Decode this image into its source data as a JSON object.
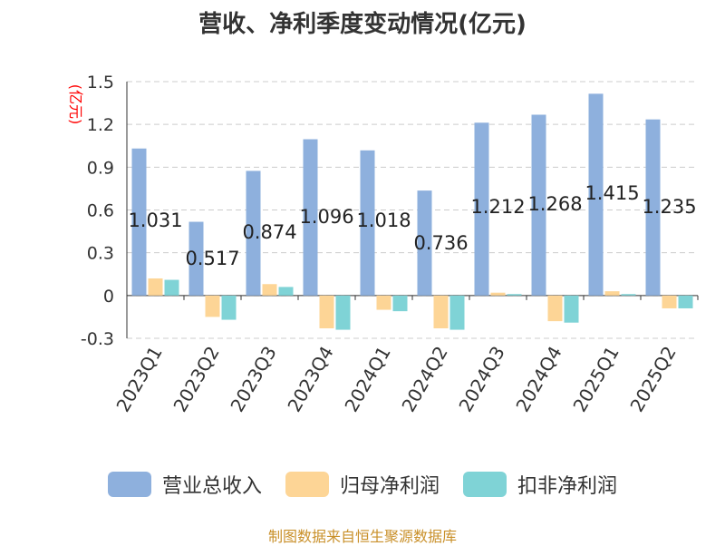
{
  "title": "营收、净利季度变动情况(亿元)",
  "source": "制图数据来自恒生聚源数据库",
  "colors": {
    "revenue": "#8eb0dd",
    "net_profit": "#fdd596",
    "deducted_profit": "#7fd3d6",
    "ylabel": "#ff0000",
    "grid": "#cccccc",
    "axis": "#333333"
  },
  "chart_data": {
    "type": "bar",
    "title": "营收、净利季度变动情况(亿元)",
    "ylabel": "(亿元)",
    "xlabel": "",
    "ylim": [
      -0.3,
      1.5
    ],
    "yticks": [
      -0.3,
      0,
      0.3,
      0.6,
      0.9,
      1.2,
      1.5
    ],
    "ytick_labels": [
      "-0.3",
      "0",
      "0.3",
      "0.6",
      "0.9",
      "1.2",
      "1.5"
    ],
    "grid": true,
    "legend_position": "bottom",
    "categories": [
      "2023Q1",
      "2023Q2",
      "2023Q3",
      "2023Q4",
      "2024Q1",
      "2024Q2",
      "2024Q3",
      "2024Q4",
      "2025Q1",
      "2025Q2"
    ],
    "series": [
      {
        "name": "营业总收入",
        "values": [
          1.031,
          0.517,
          0.874,
          1.096,
          1.018,
          0.736,
          1.212,
          1.268,
          1.415,
          1.235
        ],
        "data_labels": [
          "1.031",
          "0.517",
          "0.874",
          "1.096",
          "1.018",
          "0.736",
          "1.212",
          "1.268",
          "1.415",
          "1.235"
        ]
      },
      {
        "name": "归母净利润",
        "values": [
          0.12,
          -0.15,
          0.08,
          -0.23,
          -0.1,
          -0.23,
          0.02,
          -0.18,
          0.03,
          -0.09
        ]
      },
      {
        "name": "扣非净利润",
        "values": [
          0.11,
          -0.17,
          0.06,
          -0.24,
          -0.11,
          -0.24,
          0.01,
          -0.19,
          0.01,
          -0.09
        ]
      }
    ]
  }
}
